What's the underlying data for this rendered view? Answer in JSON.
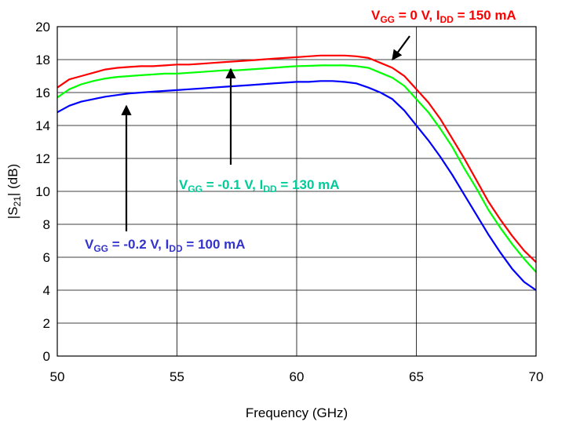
{
  "chart_data": {
    "type": "line",
    "xlabel": "Frequency (GHz)",
    "ylabel": {
      "prefix": "|S",
      "sub": "21",
      "suffix": "| (dB)"
    },
    "xlim": [
      50,
      70
    ],
    "ylim": [
      0,
      20
    ],
    "xticks": [
      50,
      55,
      60,
      65,
      70
    ],
    "yticks": [
      0,
      2,
      4,
      6,
      8,
      10,
      12,
      14,
      16,
      18,
      20
    ],
    "grid": true,
    "series": [
      {
        "color": "#ff0000",
        "x": [
          50,
          50.5,
          51,
          51.5,
          52,
          52.5,
          53,
          53.5,
          54,
          54.5,
          55,
          55.5,
          56,
          56.5,
          57,
          57.5,
          58,
          58.5,
          59,
          59.5,
          60,
          60.5,
          61,
          61.5,
          62,
          62.5,
          63,
          63.5,
          64,
          64.5,
          65,
          65.5,
          66,
          66.5,
          67,
          67.5,
          68,
          68.5,
          69,
          69.5,
          70
        ],
        "y": [
          16.3,
          16.8,
          17.0,
          17.2,
          17.4,
          17.5,
          17.55,
          17.6,
          17.6,
          17.65,
          17.7,
          17.7,
          17.75,
          17.8,
          17.85,
          17.9,
          17.95,
          18.0,
          18.05,
          18.1,
          18.15,
          18.2,
          18.25,
          18.25,
          18.25,
          18.2,
          18.1,
          17.8,
          17.5,
          17.0,
          16.2,
          15.4,
          14.4,
          13.2,
          12.0,
          10.7,
          9.4,
          8.3,
          7.3,
          6.4,
          5.7
        ]
      },
      {
        "color": "#00ff00",
        "x": [
          50,
          50.5,
          51,
          51.5,
          52,
          52.5,
          53,
          53.5,
          54,
          54.5,
          55,
          55.5,
          56,
          56.5,
          57,
          57.5,
          58,
          58.5,
          59,
          59.5,
          60,
          60.5,
          61,
          61.5,
          62,
          62.5,
          63,
          63.5,
          64,
          64.5,
          65,
          65.5,
          66,
          66.5,
          67,
          67.5,
          68,
          68.5,
          69,
          69.5,
          70
        ],
        "y": [
          15.7,
          16.2,
          16.5,
          16.7,
          16.85,
          16.95,
          17.0,
          17.05,
          17.1,
          17.15,
          17.15,
          17.2,
          17.25,
          17.3,
          17.35,
          17.35,
          17.4,
          17.45,
          17.5,
          17.55,
          17.6,
          17.62,
          17.65,
          17.65,
          17.65,
          17.6,
          17.5,
          17.2,
          16.9,
          16.4,
          15.6,
          14.8,
          13.8,
          12.7,
          11.4,
          10.2,
          8.9,
          7.8,
          6.8,
          5.9,
          5.1
        ]
      },
      {
        "color": "#0000ff",
        "x": [
          50,
          50.5,
          51,
          51.5,
          52,
          52.5,
          53,
          53.5,
          54,
          54.5,
          55,
          55.5,
          56,
          56.5,
          57,
          57.5,
          58,
          58.5,
          59,
          59.5,
          60,
          60.5,
          61,
          61.5,
          62,
          62.5,
          63,
          63.5,
          64,
          64.5,
          65,
          65.5,
          66,
          66.5,
          67,
          67.5,
          68,
          68.5,
          69,
          69.5,
          70
        ],
        "y": [
          14.8,
          15.2,
          15.45,
          15.6,
          15.75,
          15.85,
          15.95,
          16.0,
          16.05,
          16.1,
          16.15,
          16.2,
          16.25,
          16.3,
          16.35,
          16.4,
          16.45,
          16.5,
          16.55,
          16.6,
          16.65,
          16.65,
          16.7,
          16.7,
          16.65,
          16.55,
          16.3,
          16.0,
          15.6,
          14.9,
          14.0,
          13.1,
          12.1,
          11.0,
          9.8,
          8.6,
          7.4,
          6.3,
          5.3,
          4.5,
          4.0
        ]
      }
    ],
    "annotations": [
      {
        "color": "#ff0000",
        "v_sub": "GG",
        "v_text": " = 0 V, I",
        "i_sub": "DD",
        "i_text": " = 150 mA"
      },
      {
        "color": "#00cc99",
        "v_sub": "GG",
        "v_text": " = -0.1 V, I",
        "i_sub": "DD",
        "i_text": " = 130 mA"
      },
      {
        "color": "#3333cc",
        "v_sub": "GG",
        "v_text": " = -0.2 V, I",
        "i_sub": "DD",
        "i_text": " = 100 mA"
      }
    ]
  }
}
